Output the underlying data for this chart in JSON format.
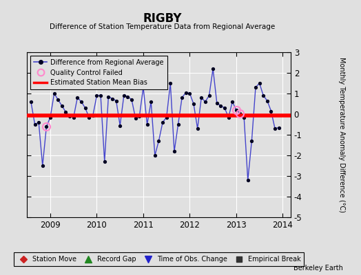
{
  "title": "RIGBY",
  "subtitle": "Difference of Station Temperature Data from Regional Average",
  "ylabel_right": "Monthly Temperature Anomaly Difference (°C)",
  "watermark": "Berkeley Earth",
  "bias_value": -0.05,
  "ylim": [
    -5,
    3
  ],
  "xlim": [
    2008.5,
    2014.17
  ],
  "xticks": [
    2009,
    2010,
    2011,
    2012,
    2013,
    2014
  ],
  "yticks_right": [
    -5,
    -4,
    -3,
    -2,
    -1,
    0,
    1,
    2,
    3
  ],
  "background_color": "#e0e0e0",
  "plot_background": "#e0e0e0",
  "line_color": "#4444cc",
  "marker_color": "#000022",
  "bias_color": "#ff0000",
  "qc_color": "#ff88cc",
  "time": [
    2008.583,
    2008.667,
    2008.75,
    2008.833,
    2008.917,
    2009.0,
    2009.083,
    2009.167,
    2009.25,
    2009.333,
    2009.417,
    2009.5,
    2009.583,
    2009.667,
    2009.75,
    2009.833,
    2009.917,
    2010.0,
    2010.083,
    2010.167,
    2010.25,
    2010.333,
    2010.417,
    2010.5,
    2010.583,
    2010.667,
    2010.75,
    2010.833,
    2010.917,
    2011.0,
    2011.083,
    2011.167,
    2011.25,
    2011.333,
    2011.417,
    2011.5,
    2011.583,
    2011.667,
    2011.75,
    2011.833,
    2011.917,
    2012.0,
    2012.083,
    2012.167,
    2012.25,
    2012.333,
    2012.417,
    2012.5,
    2012.583,
    2012.667,
    2012.75,
    2012.833,
    2012.917,
    2013.0,
    2013.083,
    2013.167,
    2013.25,
    2013.333,
    2013.417,
    2013.5,
    2013.583,
    2013.667,
    2013.75,
    2013.833,
    2013.917
  ],
  "values": [
    0.6,
    -0.5,
    -0.4,
    -2.5,
    -0.6,
    -0.15,
    1.0,
    0.7,
    0.4,
    0.1,
    -0.1,
    -0.15,
    0.8,
    0.6,
    0.3,
    -0.15,
    -0.05,
    0.9,
    0.9,
    -2.3,
    0.85,
    0.75,
    0.65,
    -0.55,
    0.9,
    0.85,
    0.7,
    -0.2,
    -0.1,
    1.3,
    -0.5,
    0.6,
    -2.0,
    -1.3,
    -0.4,
    -0.15,
    1.5,
    -1.8,
    -0.5,
    0.8,
    1.05,
    1.0,
    0.5,
    -0.7,
    0.8,
    0.6,
    0.9,
    2.2,
    0.55,
    0.4,
    0.3,
    -0.15,
    0.6,
    0.2,
    0.05,
    -0.15,
    -3.2,
    -1.3,
    1.3,
    1.5,
    0.9,
    0.65,
    0.15,
    -0.7,
    -0.65
  ],
  "qc_failed_indices": [
    4,
    53,
    54
  ],
  "legend_entries_label0": "Difference from Regional Average",
  "legend_entries_label1": "Quality Control Failed",
  "legend_entries_label2": "Estimated Station Mean Bias",
  "bottom_legend": [
    {
      "label": "Station Move",
      "color": "#cc2222",
      "marker": "D"
    },
    {
      "label": "Record Gap",
      "color": "#228822",
      "marker": "^"
    },
    {
      "label": "Time of Obs. Change",
      "color": "#2222cc",
      "marker": "v"
    },
    {
      "label": "Empirical Break",
      "color": "#333333",
      "marker": "s"
    }
  ]
}
